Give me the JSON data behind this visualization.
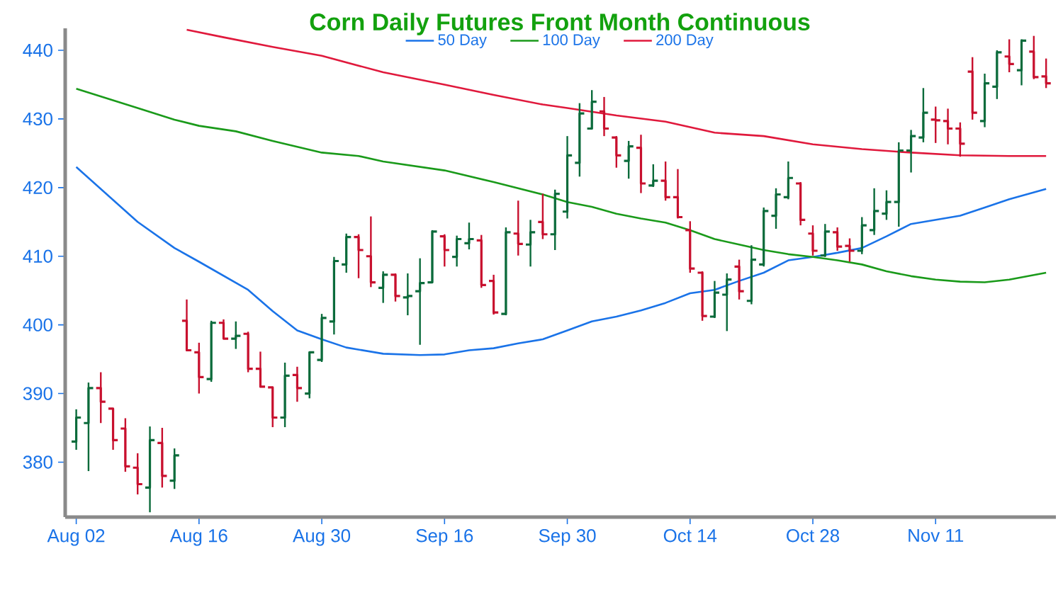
{
  "chart_data": {
    "type": "candlestick",
    "title": "Corn Daily Futures Front Month Continuous",
    "categories": [
      "Aug 02",
      null,
      null,
      null,
      null,
      null,
      null,
      null,
      null,
      null,
      "Aug 16",
      null,
      null,
      null,
      null,
      null,
      null,
      null,
      null,
      null,
      "Aug 30",
      null,
      null,
      null,
      null,
      null,
      null,
      null,
      null,
      null,
      "Sep 16",
      null,
      null,
      null,
      null,
      null,
      null,
      null,
      null,
      null,
      "Sep 30",
      null,
      null,
      null,
      null,
      null,
      null,
      null,
      null,
      null,
      "Oct 14",
      null,
      null,
      null,
      null,
      null,
      null,
      null,
      null,
      null,
      "Oct 28",
      null,
      null,
      null,
      null,
      null,
      null,
      null,
      null,
      null,
      "Nov 11",
      null,
      null,
      null,
      null,
      null,
      null,
      null,
      null,
      null
    ],
    "ohlc": [
      [
        383.0,
        387.7,
        381.8,
        386.5
      ],
      [
        385.7,
        391.6,
        378.7,
        390.8
      ],
      [
        390.8,
        393.1,
        385.7,
        388.8
      ],
      [
        387.8,
        387.9,
        381.8,
        383.2
      ],
      [
        384.9,
        386.4,
        378.6,
        379.4
      ],
      [
        379.2,
        381.3,
        375.3,
        376.8
      ],
      [
        376.3,
        385.2,
        372.7,
        383.2
      ],
      [
        382.8,
        385.0,
        376.3,
        378.0
      ],
      [
        377.3,
        382.0,
        376.1,
        381.0
      ],
      [
        400.6,
        403.7,
        396.2,
        396.3
      ],
      [
        396.0,
        397.4,
        390.0,
        392.4
      ],
      [
        392.1,
        400.6,
        391.7,
        400.3
      ],
      [
        400.3,
        400.8,
        397.9,
        398.0
      ],
      [
        398.0,
        400.5,
        396.5,
        398.4
      ],
      [
        398.7,
        399.0,
        393.1,
        393.6
      ],
      [
        393.6,
        396.1,
        390.9,
        391.0
      ],
      [
        390.9,
        391.0,
        385.1,
        386.5
      ],
      [
        386.5,
        394.5,
        385.1,
        392.6
      ],
      [
        392.7,
        393.9,
        388.8,
        390.8
      ],
      [
        390.0,
        396.1,
        389.3,
        396.0
      ],
      [
        394.9,
        401.6,
        394.6,
        401.0
      ],
      [
        400.5,
        409.9,
        398.6,
        409.3
      ],
      [
        408.8,
        413.3,
        407.6,
        412.8
      ],
      [
        412.8,
        413.2,
        406.8,
        410.9
      ],
      [
        410.0,
        415.8,
        405.5,
        406.2
      ],
      [
        405.4,
        407.8,
        403.2,
        407.3
      ],
      [
        407.3,
        407.5,
        403.4,
        404.2
      ],
      [
        404.0,
        407.5,
        401.4,
        404.2
      ],
      [
        404.9,
        409.7,
        397.1,
        406.1
      ],
      [
        406.2,
        413.8,
        406.1,
        413.6
      ],
      [
        412.9,
        413.2,
        408.5,
        410.9
      ],
      [
        409.9,
        413.0,
        408.5,
        412.5
      ],
      [
        411.9,
        414.9,
        411.0,
        412.5
      ],
      [
        412.3,
        413.1,
        405.4,
        405.8
      ],
      [
        406.4,
        407.3,
        401.5,
        401.8
      ],
      [
        401.6,
        414.2,
        401.4,
        413.5
      ],
      [
        413.3,
        418.1,
        410.1,
        411.8
      ],
      [
        411.7,
        415.3,
        408.5,
        413.5
      ],
      [
        415.0,
        419.1,
        412.5,
        413.2
      ],
      [
        413.2,
        419.7,
        410.9,
        419.1
      ],
      [
        416.5,
        427.5,
        415.5,
        424.7
      ],
      [
        423.6,
        432.3,
        421.6,
        430.8
      ],
      [
        428.6,
        434.2,
        428.5,
        432.5
      ],
      [
        431.1,
        433.2,
        427.5,
        428.6
      ],
      [
        427.3,
        427.5,
        422.9,
        424.7
      ],
      [
        423.9,
        426.8,
        421.3,
        426.0
      ],
      [
        425.8,
        427.7,
        419.2,
        420.6
      ],
      [
        420.3,
        423.4,
        420.1,
        421.0
      ],
      [
        421.0,
        423.8,
        418.1,
        418.6
      ],
      [
        418.6,
        422.7,
        415.5,
        415.7
      ],
      [
        413.8,
        415.1,
        407.6,
        408.2
      ],
      [
        407.6,
        407.8,
        400.6,
        401.3
      ],
      [
        401.2,
        406.4,
        401.0,
        404.7
      ],
      [
        404.4,
        407.5,
        399.1,
        406.6
      ],
      [
        408.5,
        409.5,
        403.7,
        404.9
      ],
      [
        403.5,
        411.6,
        403.0,
        409.5
      ],
      [
        408.8,
        417.1,
        408.5,
        416.6
      ],
      [
        415.9,
        419.9,
        414.0,
        419.0
      ],
      [
        418.6,
        423.8,
        418.3,
        421.4
      ],
      [
        420.6,
        420.8,
        414.5,
        415.3
      ],
      [
        413.3,
        414.5,
        410.1,
        410.8
      ],
      [
        410.1,
        414.7,
        409.9,
        413.6
      ],
      [
        413.5,
        414.2,
        410.8,
        411.4
      ],
      [
        411.5,
        412.6,
        409.2,
        410.8
      ],
      [
        410.8,
        415.7,
        410.3,
        414.5
      ],
      [
        413.8,
        419.9,
        413.1,
        416.6
      ],
      [
        416.2,
        419.6,
        415.3,
        417.9
      ],
      [
        417.9,
        426.6,
        414.3,
        425.4
      ],
      [
        425.4,
        428.4,
        422.2,
        427.5
      ],
      [
        427.3,
        434.5,
        426.6,
        430.9
      ],
      [
        429.9,
        431.8,
        426.5,
        429.8
      ],
      [
        429.7,
        431.5,
        426.3,
        428.6
      ],
      [
        428.6,
        429.5,
        424.5,
        426.4
      ],
      [
        436.9,
        439.0,
        429.9,
        430.9
      ],
      [
        429.7,
        436.6,
        428.8,
        435.2
      ],
      [
        434.7,
        440.0,
        432.9,
        439.7
      ],
      [
        439.1,
        441.6,
        436.8,
        438.0
      ],
      [
        437.1,
        441.6,
        434.9,
        441.4
      ],
      [
        439.8,
        442.1,
        435.8,
        436.1
      ],
      [
        436.2,
        438.8,
        434.5,
        435.2
      ]
    ],
    "colors": [
      "#0b6b3b",
      "#0b6b3b",
      "#c8102e",
      "#c8102e",
      "#c8102e",
      "#c8102e",
      "#0b6b3b",
      "#c8102e",
      "#0b6b3b",
      "#c8102e",
      "#c8102e",
      "#0b6b3b",
      "#c8102e",
      "#0b6b3b",
      "#c8102e",
      "#c8102e",
      "#c8102e",
      "#0b6b3b",
      "#c8102e",
      "#0b6b3b",
      "#0b6b3b",
      "#0b6b3b",
      "#0b6b3b",
      "#c8102e",
      "#c8102e",
      "#0b6b3b",
      "#c8102e",
      "#0b6b3b",
      "#0b6b3b",
      "#0b6b3b",
      "#c8102e",
      "#0b6b3b",
      "#0b6b3b",
      "#c8102e",
      "#c8102e",
      "#0b6b3b",
      "#c8102e",
      "#0b6b3b",
      "#c8102e",
      "#0b6b3b",
      "#0b6b3b",
      "#0b6b3b",
      "#0b6b3b",
      "#c8102e",
      "#c8102e",
      "#0b6b3b",
      "#c8102e",
      "#0b6b3b",
      "#c8102e",
      "#c8102e",
      "#c8102e",
      "#c8102e",
      "#0b6b3b",
      "#0b6b3b",
      "#c8102e",
      "#0b6b3b",
      "#0b6b3b",
      "#0b6b3b",
      "#0b6b3b",
      "#c8102e",
      "#c8102e",
      "#0b6b3b",
      "#c8102e",
      "#c8102e",
      "#0b6b3b",
      "#0b6b3b",
      "#0b6b3b",
      "#0b6b3b",
      "#0b6b3b",
      "#0b6b3b",
      "#c8102e",
      "#c8102e",
      "#c8102e",
      "#c8102e",
      "#0b6b3b",
      "#0b6b3b",
      "#c8102e",
      "#0b6b3b",
      "#c8102e",
      "#c8102e"
    ],
    "series": [
      {
        "name": "50 Day",
        "type": "line",
        "color": "#1a73e8",
        "values": [
          423.0,
          null,
          null,
          null,
          null,
          415.0,
          null,
          null,
          411.2,
          null,
          409.2,
          null,
          null,
          null,
          405.1,
          null,
          402.0,
          null,
          399.2,
          null,
          397.9,
          null,
          396.7,
          null,
          null,
          395.8,
          null,
          null,
          395.6,
          null,
          395.7,
          null,
          396.3,
          null,
          396.6,
          null,
          397.3,
          null,
          397.9,
          null,
          399.2,
          null,
          400.5,
          null,
          401.2,
          null,
          402.1,
          null,
          403.2,
          null,
          404.6,
          null,
          405.1,
          null,
          406.4,
          null,
          407.6,
          null,
          409.4,
          null,
          409.9,
          null,
          410.5,
          null,
          411.2,
          null,
          412.9,
          null,
          414.7,
          null,
          415.3,
          null,
          415.9,
          null,
          417.1,
          null,
          418.3,
          null,
          null,
          419.8
        ]
      },
      {
        "name": "100 Day",
        "type": "line",
        "color": "#1a9a1a",
        "values": [
          434.4,
          null,
          null,
          null,
          null,
          431.6,
          null,
          null,
          429.9,
          null,
          429.0,
          null,
          null,
          428.2,
          null,
          null,
          426.8,
          null,
          null,
          null,
          425.1,
          null,
          null,
          424.6,
          null,
          423.8,
          null,
          null,
          null,
          null,
          422.5,
          null,
          null,
          null,
          420.8,
          null,
          null,
          null,
          419.0,
          null,
          417.9,
          null,
          417.2,
          null,
          416.2,
          null,
          415.5,
          null,
          414.9,
          null,
          413.8,
          null,
          412.5,
          null,
          411.7,
          null,
          410.9,
          null,
          410.3,
          null,
          409.9,
          null,
          409.4,
          null,
          408.8,
          null,
          407.8,
          null,
          407.1,
          null,
          406.6,
          null,
          406.3,
          null,
          406.2,
          null,
          406.6,
          null,
          null,
          407.6
        ]
      },
      {
        "name": "200 Day",
        "type": "line",
        "color": "#e0193c",
        "values": [
          null,
          null,
          null,
          null,
          null,
          null,
          null,
          null,
          null,
          443.0,
          null,
          null,
          441.9,
          null,
          null,
          null,
          440.5,
          null,
          null,
          null,
          439.2,
          null,
          null,
          null,
          null,
          436.8,
          null,
          null,
          null,
          null,
          435.0,
          null,
          null,
          null,
          433.5,
          null,
          null,
          null,
          432.1,
          null,
          431.6,
          null,
          null,
          null,
          430.5,
          null,
          null,
          null,
          429.6,
          null,
          428.8,
          null,
          428.0,
          null,
          null,
          null,
          427.5,
          null,
          null,
          null,
          426.3,
          null,
          null,
          null,
          425.6,
          null,
          null,
          null,
          425.1,
          null,
          null,
          null,
          424.7,
          null,
          null,
          null,
          424.6,
          null,
          null,
          424.6
        ]
      }
    ],
    "ylim": [
      372,
      443.2
    ],
    "yticks": [
      380,
      390,
      400,
      410,
      420,
      430,
      440
    ],
    "legend": "top"
  }
}
